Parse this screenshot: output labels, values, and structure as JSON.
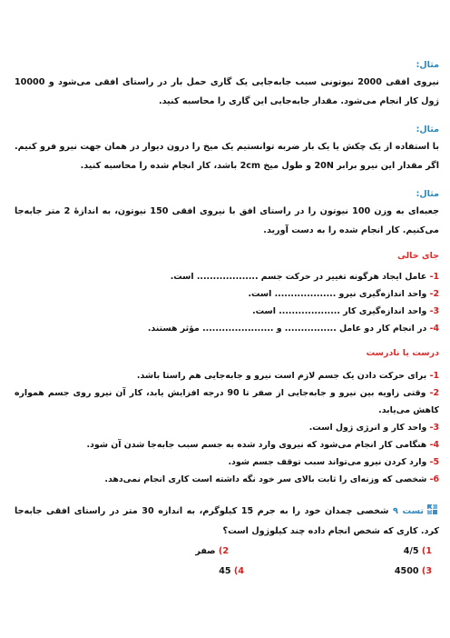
{
  "examples": [
    {
      "label": "مثال:",
      "text": "نیروی افقی 2000 نیوتونی سبب جابه‌جایی یک گاری حمل بار در راستای افقی می‌شود و 10000 ژول کار انجام می‌شود. مقدار جابه‌جایی این گاری را محاسبه کنید."
    },
    {
      "label": "مثال:",
      "text": "با استفاده از یک چکش یا یک بار ضربه توانستیم یک میخ را درون دیوار در همان جهت نیرو فرو کنیم. اگر مقدار این نیرو برابر 20N و طول میخ 2cm باشد، کار انجام شده را محاسبه کنید."
    },
    {
      "label": "مثال:",
      "text": "جعبه‌ای به وزن 100 نیوتون را در راستای افق با نیروی افقی 150 نیوتون، به اندازهٔ 2 متر جابه‌جا می‌کنیم. کار انجام شده را به دست آورید."
    }
  ],
  "fill_blank": {
    "title": "جای خالی",
    "items": [
      {
        "num": "1-",
        "text": "عامل ایجاد هرگونه تغییر در حرکت جسم ................... است."
      },
      {
        "num": "2-",
        "text": "واحد اندازه‌گیری نیرو ................... است."
      },
      {
        "num": "3-",
        "text": "واحد اندازه‌گیری کار ................... است."
      },
      {
        "num": "4-",
        "text": "در انجام کار دو عامل ................ و ...................... مؤثر هستند."
      }
    ]
  },
  "true_false": {
    "title": "درست یا نادرست",
    "items": [
      {
        "num": "1-",
        "text": "برای حرکت دادن یک جسم لازم است نیرو و جابه‌جایی هم راستا باشد."
      },
      {
        "num": "2-",
        "text": "وقتی زاویه بین نیرو و جابه‌جایی از صفر تا 90 درجه افزایش یابد، کار آن نیرو روی جسم همواره کاهش می‌یابد."
      },
      {
        "num": "3-",
        "text": "واحد کار و انرژی ژول است."
      },
      {
        "num": "4-",
        "text": "هنگامی کار انجام می‌شود که نیروی وارد شده به جسم سبب جابه‌جا شدن آن شود."
      },
      {
        "num": "5-",
        "text": "وارد کردن نیرو می‌تواند سبب توقف جسم شود."
      },
      {
        "num": "6-",
        "text": "شخصی که وزنه‌ای را ثابت بالای سر خود نگه داشته است کاری انجام نمی‌دهد."
      }
    ]
  },
  "test": {
    "label": "تست ۹",
    "question": "شخصی چمدان خود را به جرم 15 کیلوگرم، به اندازه 30 متر در راستای افقی جابه‌جا کرد. کاری که شخص انجام داده چند کیلوژول است؟",
    "options": [
      {
        "num": "1)",
        "text": "4/5"
      },
      {
        "num": "2)",
        "text": "صفر"
      },
      {
        "num": "3)",
        "text": "4500"
      },
      {
        "num": "4)",
        "text": "45"
      }
    ]
  },
  "colors": {
    "label_blue": "#2f86b8",
    "heading_red": "#e02b2b",
    "number_red": "#d62020"
  },
  "icons": {
    "test": "puzzle-icon"
  }
}
